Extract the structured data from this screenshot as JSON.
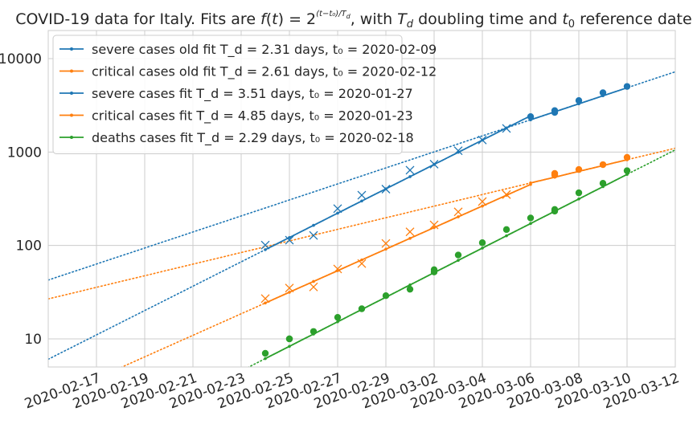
{
  "chart_data": {
    "type": "line",
    "title": "COVID-19 data for Italy. Fits are f(t) = 2^((t−t₀)/T_d), with T_d doubling time and t₀ reference date",
    "yscale": "log",
    "ylim": [
      5,
      20000
    ],
    "xlim": [
      "2020-02-15",
      "2020-03-12"
    ],
    "ytick_labels": [
      "10",
      "100",
      "1000",
      "10000"
    ],
    "yticks": [
      10,
      100,
      1000,
      10000
    ],
    "xtick_labels": [
      "2020-02-17",
      "2020-02-19",
      "2020-02-21",
      "2020-02-23",
      "2020-02-25",
      "2020-02-27",
      "2020-02-29",
      "2020-03-02",
      "2020-03-04",
      "2020-03-06",
      "2020-03-08",
      "2020-03-10",
      "2020-03-12"
    ],
    "grid": true,
    "legend_position": "top-left",
    "colors": {
      "blue": "#1f77b4",
      "orange": "#ff7f0e",
      "green": "#2ca02c"
    },
    "legend": [
      {
        "label": "severe cases old fit T_d = 2.31 days, t₀ = 2020-02-09",
        "color": "#1f77b4"
      },
      {
        "label": "critical cases old fit T_d = 2.61 days, t₀ = 2020-02-12",
        "color": "#ff7f0e"
      },
      {
        "label": "severe cases fit T_d = 3.51 days, t₀ = 2020-01-27",
        "color": "#1f77b4"
      },
      {
        "label": "critical cases fit T_d = 4.85 days, t₀ = 2020-01-23",
        "color": "#ff7f0e"
      },
      {
        "label": "deaths cases fit T_d = 2.29 days, t₀ = 2020-02-18",
        "color": "#2ca02c"
      }
    ],
    "fits": [
      {
        "kind": "dotted",
        "color": "#1f77b4",
        "t0": "2020-01-27",
        "Td": 3.51,
        "from": "2020-02-15",
        "to": "2020-03-12"
      },
      {
        "kind": "dotted",
        "color": "#ff7f0e",
        "t0": "2020-01-23",
        "Td": 4.85,
        "from": "2020-02-15",
        "to": "2020-03-12"
      },
      {
        "kind": "dotted",
        "color": "#1f77b4",
        "t0": "2020-02-09",
        "Td": 2.31,
        "from": "2020-02-15",
        "to": "2020-03-06"
      },
      {
        "kind": "dotted",
        "color": "#ff7f0e",
        "t0": "2020-02-12",
        "Td": 2.61,
        "from": "2020-02-15",
        "to": "2020-03-06"
      },
      {
        "kind": "dotted",
        "color": "#2ca02c",
        "t0": "2020-02-18",
        "Td": 2.29,
        "from": "2020-02-23",
        "to": "2020-03-12"
      },
      {
        "kind": "solid",
        "color": "#1f77b4",
        "t0": "2020-02-09",
        "Td": 2.31,
        "from": "2020-02-24",
        "to": "2020-03-06"
      },
      {
        "kind": "solid",
        "color": "#ff7f0e",
        "t0": "2020-02-12",
        "Td": 2.61,
        "from": "2020-02-24",
        "to": "2020-03-06"
      },
      {
        "kind": "solid",
        "color": "#1f77b4",
        "t0": "2020-01-27",
        "Td": 3.51,
        "from": "2020-03-06",
        "to": "2020-03-10"
      },
      {
        "kind": "solid",
        "color": "#ff7f0e",
        "t0": "2020-01-23",
        "Td": 4.85,
        "from": "2020-03-06",
        "to": "2020-03-10"
      },
      {
        "kind": "solid",
        "color": "#2ca02c",
        "t0": "2020-02-18",
        "Td": 2.29,
        "from": "2020-02-24",
        "to": "2020-03-10"
      }
    ],
    "series": [
      {
        "name": "severe cases (old data)",
        "color": "#1f77b4",
        "marker": "x",
        "x": [
          "2020-02-24",
          "2020-02-25",
          "2020-02-26",
          "2020-02-27",
          "2020-02-28",
          "2020-02-29",
          "2020-03-01",
          "2020-03-02",
          "2020-03-03",
          "2020-03-04",
          "2020-03-05"
        ],
        "y": [
          101,
          114,
          128,
          248,
          345,
          401,
          639,
          742,
          1034,
          1346,
          1790
        ]
      },
      {
        "name": "critical cases (old data)",
        "color": "#ff7f0e",
        "marker": "x",
        "x": [
          "2020-02-24",
          "2020-02-25",
          "2020-02-26",
          "2020-02-27",
          "2020-02-28",
          "2020-02-29",
          "2020-03-01",
          "2020-03-02",
          "2020-03-03",
          "2020-03-04",
          "2020-03-05"
        ],
        "y": [
          27,
          35,
          36,
          56,
          64,
          105,
          140,
          166,
          229,
          295,
          351
        ]
      },
      {
        "name": "severe cases (new data)",
        "color": "#1f77b4",
        "marker": "o",
        "x": [
          "2020-03-06",
          "2020-03-07",
          "2020-03-07",
          "2020-03-08",
          "2020-03-09",
          "2020-03-10"
        ],
        "y": [
          2394,
          2651,
          2780,
          3557,
          4316,
          5038
        ]
      },
      {
        "name": "critical cases (new data)",
        "color": "#ff7f0e",
        "marker": "o",
        "x": [
          "2020-03-07",
          "2020-03-07",
          "2020-03-08",
          "2020-03-09",
          "2020-03-10"
        ],
        "y": [
          567,
          590,
          650,
          733,
          877
        ]
      },
      {
        "name": "deaths",
        "color": "#2ca02c",
        "marker": "o",
        "x": [
          "2020-02-24",
          "2020-02-25",
          "2020-02-25",
          "2020-02-26",
          "2020-02-27",
          "2020-02-28",
          "2020-02-29",
          "2020-03-01",
          "2020-03-02",
          "2020-03-02",
          "2020-03-03",
          "2020-03-04",
          "2020-03-05",
          "2020-03-06",
          "2020-03-07",
          "2020-03-07",
          "2020-03-08",
          "2020-03-09",
          "2020-03-10"
        ],
        "y": [
          7,
          10,
          10,
          12,
          17,
          21,
          29,
          34,
          52,
          55,
          79,
          107,
          148,
          197,
          233,
          243,
          366,
          463,
          631
        ]
      }
    ]
  }
}
